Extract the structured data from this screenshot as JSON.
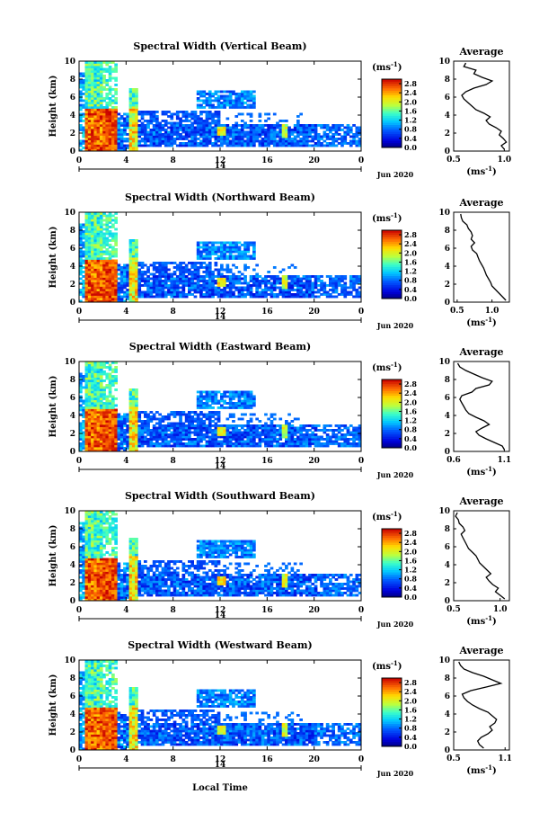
{
  "figure": {
    "xlabel": "Local Time",
    "date_label": "Jun 2020",
    "day_label": "14",
    "unit_label": "(ms",
    "unit_exp": "-1",
    "unit_close": ")"
  },
  "chart_data": [
    {
      "type": "heatmap",
      "title": "Spectral Width (Vertical Beam)",
      "ylabel": "Height (km)",
      "xlabel": "",
      "x_ticks": [
        "0",
        "4",
        "8",
        "12",
        "16",
        "20",
        "0"
      ],
      "y_ticks": [
        "0",
        "2",
        "4",
        "6",
        "8",
        "10"
      ],
      "xlim": [
        0,
        24
      ],
      "ylim": [
        0,
        10
      ],
      "colorbar_ticks": [
        "0.0",
        "0.4",
        "0.8",
        "1.2",
        "1.6",
        "2.0",
        "2.4",
        "2.8"
      ],
      "colorbar_range": [
        0,
        3.0
      ],
      "average": {
        "title": "Average",
        "xlabel": "(ms",
        "xlabel_exp": "-1",
        "xlabel_close": ")",
        "x_ticks": [
          "0.5",
          "1.0"
        ],
        "x_tick_values": [
          0.5,
          1.0
        ],
        "xlim": [
          0.5,
          1.05
        ],
        "y_ticks": [
          "0",
          "2",
          "4",
          "6",
          "8",
          "10"
        ],
        "heights": [
          0.2,
          0.6,
          1.0,
          1.4,
          1.8,
          2.2,
          2.6,
          3.0,
          3.4,
          3.8,
          4.2,
          4.6,
          5.0,
          5.4,
          5.8,
          6.2,
          6.6,
          7.0,
          7.4,
          7.8,
          8.2,
          8.6,
          9.0,
          9.4,
          9.8
        ],
        "values": [
          1.0,
          0.97,
          1.02,
          0.99,
          0.95,
          0.97,
          0.92,
          0.85,
          0.82,
          0.86,
          0.8,
          0.72,
          0.68,
          0.64,
          0.6,
          0.58,
          0.62,
          0.7,
          0.82,
          0.88,
          0.78,
          0.7,
          0.72,
          0.6,
          0.62
        ]
      }
    },
    {
      "type": "heatmap",
      "title": "Spectral Width (Northward Beam)",
      "ylabel": "Height (km)",
      "xlabel": "",
      "x_ticks": [
        "0",
        "4",
        "8",
        "12",
        "16",
        "20",
        "0"
      ],
      "y_ticks": [
        "0",
        "2",
        "4",
        "6",
        "8",
        "10"
      ],
      "xlim": [
        0,
        24
      ],
      "ylim": [
        0,
        10
      ],
      "colorbar_ticks": [
        "0.0",
        "0.4",
        "0.8",
        "1.2",
        "1.6",
        "2.0",
        "2.4",
        "2.8"
      ],
      "colorbar_range": [
        0,
        3.0
      ],
      "average": {
        "title": "Average",
        "xlabel": "(ms",
        "xlabel_exp": "-1",
        "xlabel_close": ")",
        "x_ticks": [
          "0.5",
          "1.0"
        ],
        "x_tick_values": [
          0.5,
          1.0
        ],
        "xlim": [
          0.45,
          1.25
        ],
        "y_ticks": [
          "0",
          "2",
          "4",
          "6",
          "8",
          "10"
        ],
        "heights": [
          0.2,
          0.6,
          1.0,
          1.4,
          1.8,
          2.2,
          2.6,
          3.0,
          3.4,
          3.8,
          4.2,
          4.6,
          5.0,
          5.4,
          5.8,
          6.2,
          6.6,
          7.0,
          7.4,
          7.8,
          8.2,
          8.6,
          9.0,
          9.4,
          9.8
        ],
        "values": [
          1.2,
          1.15,
          1.1,
          1.05,
          1.0,
          0.98,
          0.95,
          0.92,
          0.9,
          0.88,
          0.85,
          0.82,
          0.8,
          0.78,
          0.72,
          0.7,
          0.75,
          0.7,
          0.72,
          0.7,
          0.66,
          0.64,
          0.58,
          0.56,
          0.55
        ]
      }
    },
    {
      "type": "heatmap",
      "title": "Spectral Width (Eastward Beam)",
      "ylabel": "Height (km)",
      "xlabel": "",
      "x_ticks": [
        "0",
        "4",
        "8",
        "12",
        "16",
        "20",
        "0"
      ],
      "y_ticks": [
        "0",
        "2",
        "4",
        "6",
        "8",
        "10"
      ],
      "xlim": [
        0,
        24
      ],
      "ylim": [
        0,
        10
      ],
      "colorbar_ticks": [
        "0.0",
        "0.4",
        "0.8",
        "1.2",
        "1.6",
        "2.0",
        "2.4",
        "2.8"
      ],
      "colorbar_range": [
        0,
        3.0
      ],
      "average": {
        "title": "Average",
        "xlabel": "(ms",
        "xlabel_exp": "-1",
        "xlabel_close": ")",
        "x_ticks": [
          "0.6",
          "1.1"
        ],
        "x_tick_values": [
          0.6,
          1.1
        ],
        "xlim": [
          0.6,
          1.15
        ],
        "y_ticks": [
          "0",
          "2",
          "4",
          "6",
          "8",
          "10"
        ],
        "heights": [
          0.2,
          0.6,
          1.0,
          1.4,
          1.8,
          2.2,
          2.6,
          3.0,
          3.4,
          3.8,
          4.2,
          4.6,
          5.0,
          5.4,
          5.8,
          6.2,
          6.6,
          7.0,
          7.4,
          7.8,
          8.2,
          8.6,
          9.0,
          9.4,
          9.8
        ],
        "values": [
          1.1,
          1.08,
          1.0,
          0.92,
          0.85,
          0.82,
          0.88,
          0.95,
          0.9,
          0.82,
          0.75,
          0.72,
          0.7,
          0.68,
          0.66,
          0.68,
          0.78,
          0.82,
          0.95,
          0.98,
          0.88,
          0.8,
          0.72,
          0.66,
          0.64
        ]
      }
    },
    {
      "type": "heatmap",
      "title": "Spectral Width (Southward Beam)",
      "ylabel": "Height (km)",
      "xlabel": "",
      "x_ticks": [
        "0",
        "4",
        "8",
        "12",
        "16",
        "20",
        "0"
      ],
      "y_ticks": [
        "0",
        "2",
        "4",
        "6",
        "8",
        "10"
      ],
      "xlim": [
        0,
        24
      ],
      "ylim": [
        0,
        10
      ],
      "colorbar_ticks": [
        "0.0",
        "0.4",
        "0.8",
        "1.2",
        "1.6",
        "2.0",
        "2.4",
        "2.8"
      ],
      "colorbar_range": [
        0,
        3.0
      ],
      "average": {
        "title": "Average",
        "xlabel": "(ms",
        "xlabel_exp": "-1",
        "xlabel_close": ")",
        "x_ticks": [
          "0.5",
          "1.0"
        ],
        "x_tick_values": [
          0.5,
          1.0
        ],
        "xlim": [
          0.5,
          1.1
        ],
        "y_ticks": [
          "0",
          "2",
          "4",
          "6",
          "8",
          "10"
        ],
        "heights": [
          0.2,
          0.6,
          1.0,
          1.4,
          1.8,
          2.2,
          2.6,
          3.0,
          3.4,
          3.8,
          4.2,
          4.6,
          5.0,
          5.4,
          5.8,
          6.2,
          6.6,
          7.0,
          7.4,
          7.8,
          8.2,
          8.6,
          9.0,
          9.4,
          9.8
        ],
        "values": [
          1.05,
          1.0,
          0.95,
          0.98,
          0.92,
          0.88,
          0.85,
          0.9,
          0.86,
          0.82,
          0.78,
          0.76,
          0.74,
          0.7,
          0.66,
          0.64,
          0.62,
          0.6,
          0.58,
          0.62,
          0.6,
          0.56,
          0.55,
          0.52,
          0.54
        ]
      }
    },
    {
      "type": "heatmap",
      "title": "Spectral Width (Westward Beam)",
      "ylabel": "Height (km)",
      "xlabel": "Local Time",
      "x_ticks": [
        "0",
        "4",
        "8",
        "12",
        "16",
        "20",
        "0"
      ],
      "y_ticks": [
        "0",
        "2",
        "4",
        "6",
        "8",
        "10"
      ],
      "xlim": [
        0,
        24
      ],
      "ylim": [
        0,
        10
      ],
      "colorbar_ticks": [
        "0.0",
        "0.4",
        "0.8",
        "1.2",
        "1.6",
        "2.0",
        "2.4",
        "2.8"
      ],
      "colorbar_range": [
        0,
        3.0
      ],
      "average": {
        "title": "Average",
        "xlabel": "(ms",
        "xlabel_exp": "-1",
        "xlabel_close": ")",
        "x_ticks": [
          "0.5",
          "1.1"
        ],
        "x_tick_values": [
          0.5,
          1.1
        ],
        "xlim": [
          0.5,
          1.15
        ],
        "y_ticks": [
          "0",
          "2",
          "4",
          "6",
          "8",
          "10"
        ],
        "heights": [
          0.2,
          0.6,
          1.0,
          1.4,
          1.8,
          2.2,
          2.6,
          3.0,
          3.4,
          3.8,
          4.2,
          4.6,
          5.0,
          5.4,
          5.8,
          6.2,
          6.6,
          7.0,
          7.4,
          7.8,
          8.2,
          8.6,
          9.0,
          9.4,
          9.8
        ],
        "values": [
          0.85,
          0.8,
          0.78,
          0.82,
          0.9,
          0.95,
          0.92,
          0.98,
          1.0,
          0.95,
          0.9,
          0.8,
          0.72,
          0.66,
          0.62,
          0.6,
          0.7,
          0.88,
          1.05,
          0.95,
          0.85,
          0.72,
          0.62,
          0.58,
          0.56
        ]
      }
    }
  ]
}
